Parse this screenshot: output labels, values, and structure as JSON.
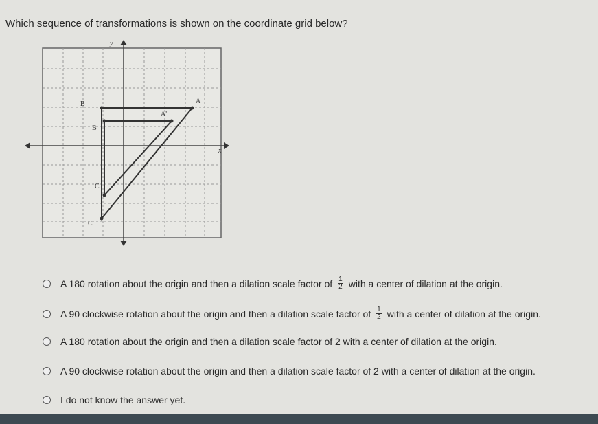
{
  "question": "Which sequence of transformations is shown on the coordinate grid below?",
  "graph": {
    "y_axis_label": "y",
    "x_axis_label": "x",
    "labels": {
      "A": "A",
      "B": "B",
      "C": "C",
      "A_prime": "A'",
      "B_prime": "B'",
      "C_prime": "C'"
    }
  },
  "options": [
    {
      "before": "A 180 rotation about the origin and then a dilation scale factor of",
      "fraction": {
        "numerator": "1",
        "denominator": "2"
      },
      "after": "with a center of dilation at the origin."
    },
    {
      "before": "A 90 clockwise rotation about the origin and then a dilation scale factor of",
      "fraction": {
        "numerator": "1",
        "denominator": "2"
      },
      "after": "with a center of dilation at the origin."
    },
    {
      "text": "A 180 rotation about the origin and then a dilation scale factor of 2 with a center of dilation at the origin."
    },
    {
      "text": "A 90 clockwise rotation about the origin and then a dilation scale factor of 2 with a center of dilation at the origin."
    },
    {
      "text": "I do not know the answer yet."
    }
  ]
}
